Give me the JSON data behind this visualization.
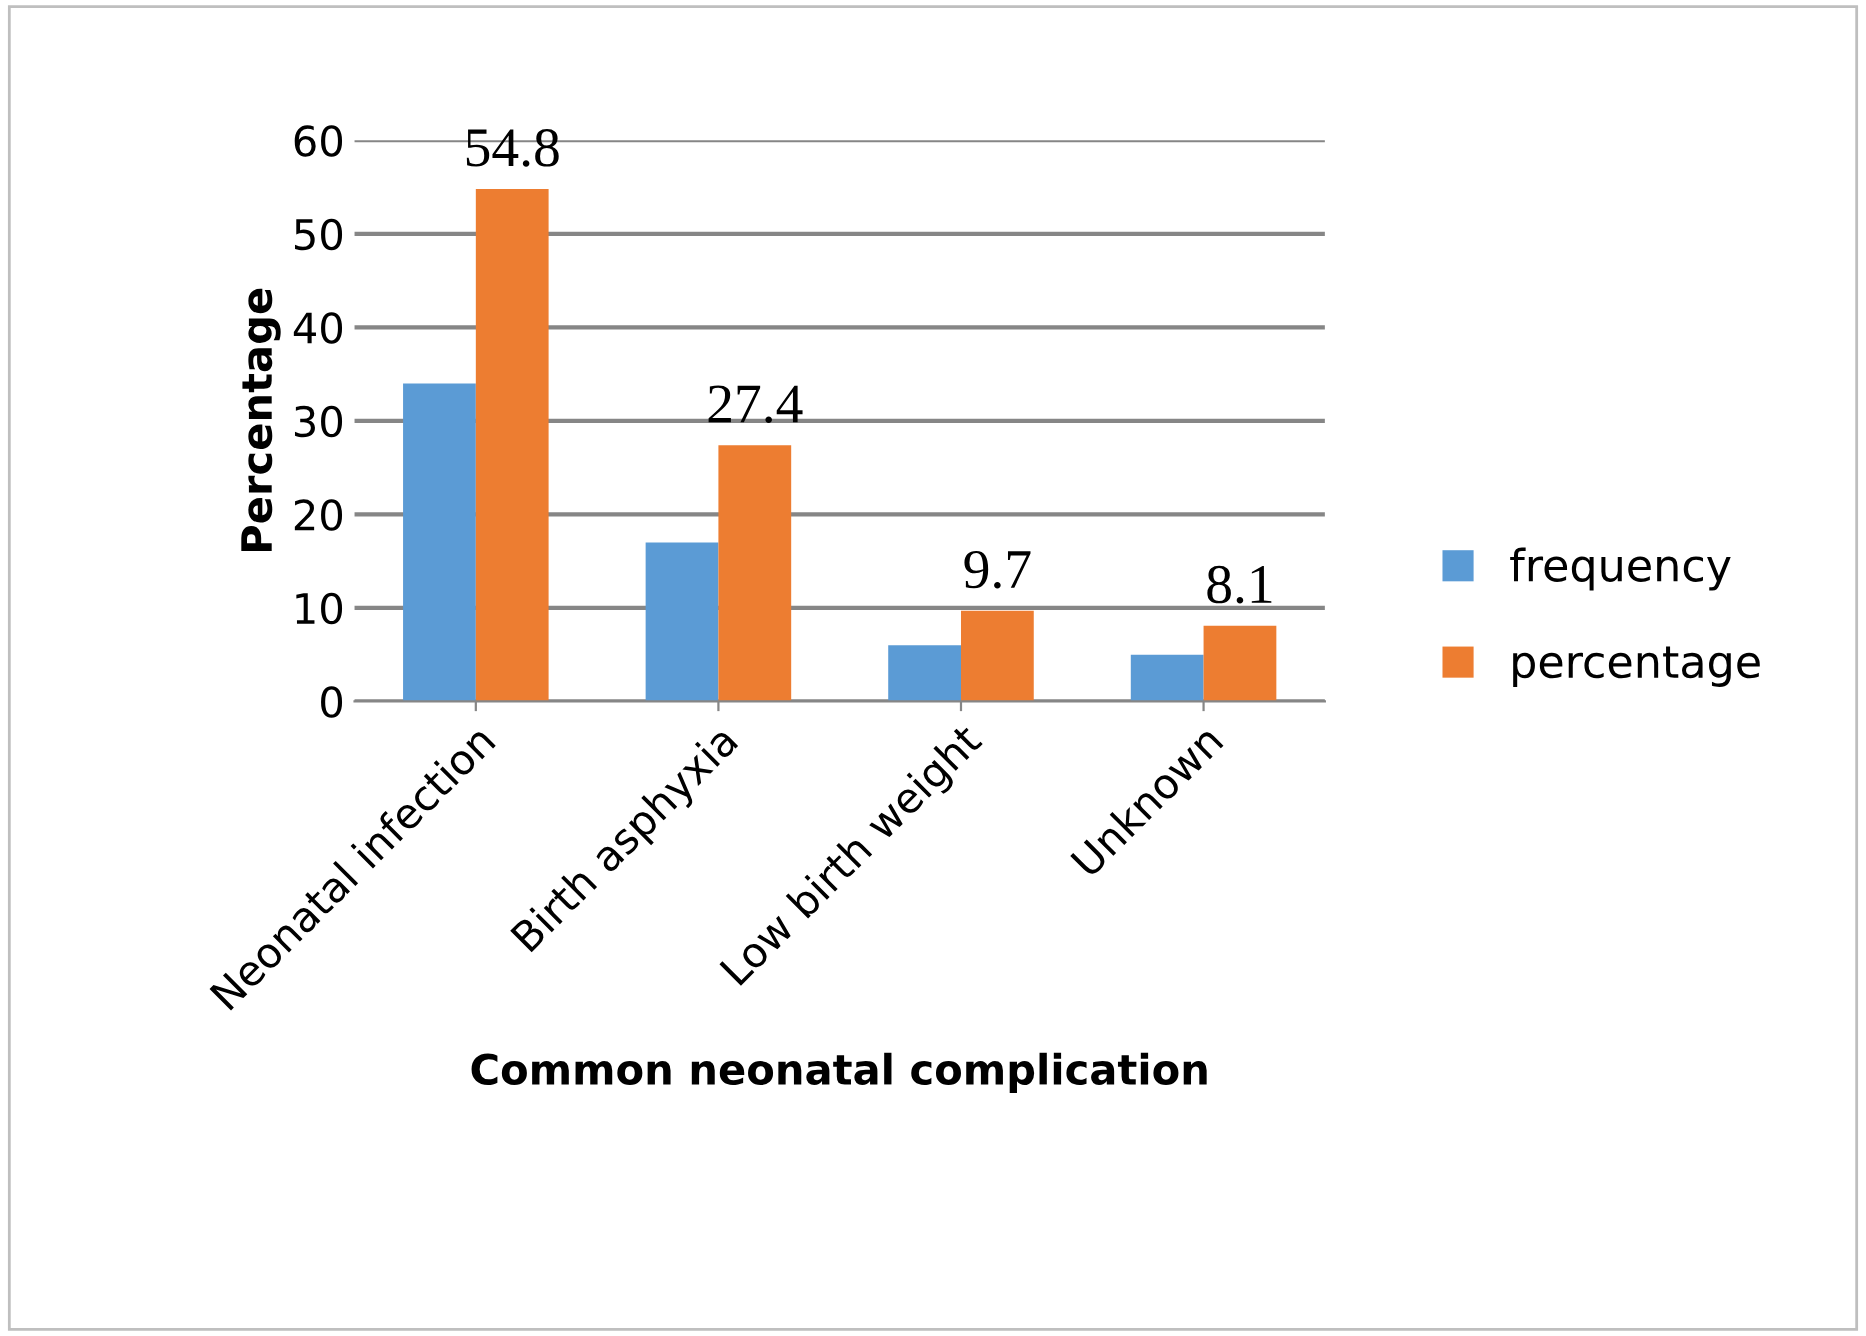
{
  "chart_data": {
    "type": "bar",
    "xlabel": "Common neonatal complication",
    "ylabel": "Percentage",
    "categories": [
      "Neonatal infection",
      "Birth asphyxia",
      "Low birth weight",
      "Unknown"
    ],
    "series": [
      {
        "name": "frequency",
        "color": "#5b9bd5",
        "values": [
          34,
          17,
          6,
          5
        ]
      },
      {
        "name": "percentage",
        "color": "#ed7d31",
        "values": [
          54.8,
          27.4,
          9.7,
          8.1
        ],
        "value_labels": [
          "54.8",
          "27.4",
          "9.7",
          "8.1"
        ]
      }
    ],
    "ylim": [
      0,
      60
    ],
    "yticks": [
      0,
      10,
      20,
      30,
      40,
      50,
      60
    ],
    "grid": "y",
    "legend": "right"
  }
}
